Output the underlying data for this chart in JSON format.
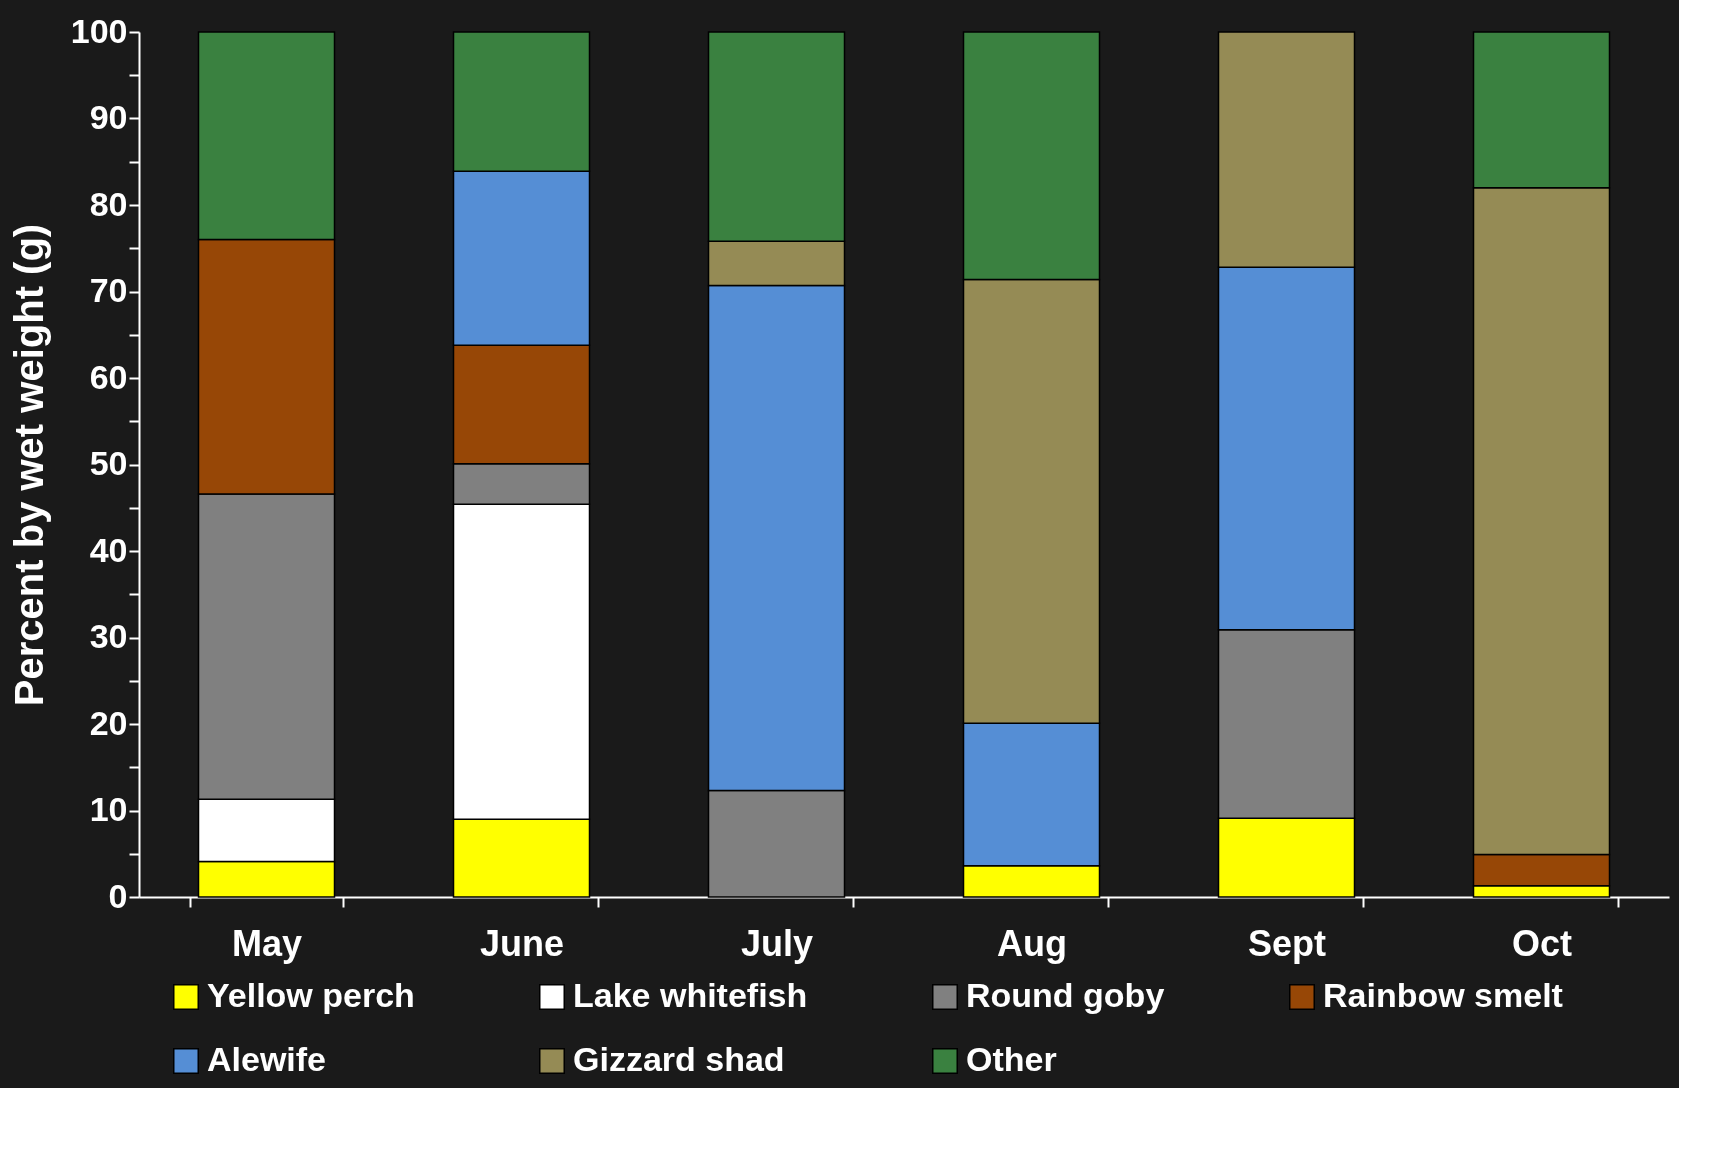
{
  "chart_data": {
    "type": "bar",
    "stacked": true,
    "ylabel": "Percent by wet weight (g)",
    "categories": [
      "May",
      "June",
      "July",
      "Aug",
      "Sept",
      "Oct"
    ],
    "series": [
      {
        "name": "Yellow perch",
        "color": "#ffff00",
        "values": [
          4.1,
          9.0,
          null,
          3.6,
          9.1,
          1.3
        ]
      },
      {
        "name": "Lake whitefish",
        "color": "#ffffff",
        "values": [
          7.2,
          36.4,
          null,
          null,
          null,
          null
        ]
      },
      {
        "name": "Round goby",
        "color": "#808080",
        "values": [
          35.3,
          4.7,
          12.3,
          null,
          21.8,
          null
        ]
      },
      {
        "name": "Rainbow smelt",
        "color": "#974706",
        "values": [
          29.4,
          13.7,
          null,
          null,
          null,
          3.6
        ]
      },
      {
        "name": "Alewife",
        "color": "#558ed5",
        "values": [
          null,
          20.1,
          58.4,
          16.5,
          41.9,
          null
        ]
      },
      {
        "name": "Gizzard shad",
        "color": "#958b55",
        "values": [
          null,
          null,
          5.1,
          51.3,
          27.2,
          77.1
        ]
      },
      {
        "name": "Other",
        "color": "#3a8140",
        "values": [
          24.0,
          16.1,
          24.2,
          28.6,
          null,
          18.0
        ]
      }
    ],
    "ylim": [
      0,
      100
    ],
    "yticks": [
      0,
      {
        "value": 5,
        "label": null
      },
      10,
      {
        "value": 15,
        "label": null
      },
      20,
      {
        "value": 25,
        "label": null
      },
      30,
      {
        "value": 35,
        "label": null
      },
      40,
      {
        "value": 45,
        "label": null
      },
      50,
      {
        "value": 55,
        "label": null
      },
      60,
      {
        "value": 65,
        "label": null
      },
      70,
      {
        "value": 75,
        "label": null
      },
      80,
      {
        "value": 85,
        "label": null
      },
      90,
      {
        "value": 95,
        "label": null
      },
      100
    ],
    "grid": false,
    "legend": "bottom"
  }
}
